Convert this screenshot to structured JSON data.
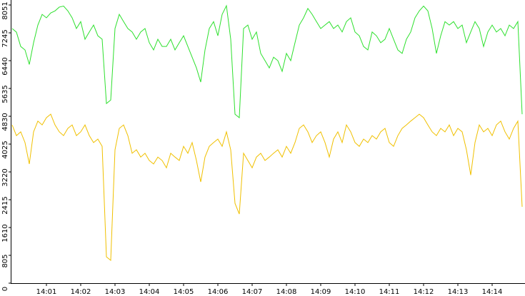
{
  "chart_data": {
    "type": "line",
    "categories": [
      null,
      null,
      null,
      null,
      null,
      null,
      null,
      null,
      "14:01",
      null,
      null,
      null,
      null,
      null,
      null,
      null,
      "14:02",
      null,
      null,
      null,
      null,
      null,
      null,
      null,
      "14:03",
      null,
      null,
      null,
      null,
      null,
      null,
      null,
      "14:04",
      null,
      null,
      null,
      null,
      null,
      null,
      null,
      "14:05",
      null,
      null,
      null,
      null,
      null,
      null,
      null,
      "14:06",
      null,
      null,
      null,
      null,
      null,
      null,
      null,
      "14:07",
      null,
      null,
      null,
      null,
      null,
      null,
      null,
      "14:08",
      null,
      null,
      null,
      null,
      null,
      null,
      null,
      "14:09",
      null,
      null,
      null,
      null,
      null,
      null,
      null,
      "14:10",
      null,
      null,
      null,
      null,
      null,
      null,
      null,
      "14:11",
      null,
      null,
      null,
      null,
      null,
      null,
      null,
      "14:12",
      null,
      null,
      null,
      null,
      null,
      null,
      null,
      "14:13",
      null,
      null,
      null,
      null,
      null,
      null,
      null,
      "14:14",
      null,
      null,
      null,
      null,
      null,
      null,
      null
    ],
    "series": [
      {
        "color": "#2ee02e",
        "values": [
          7370,
          7265,
          6850,
          6750,
          6330,
          6960,
          7470,
          7780,
          7680,
          7820,
          7880,
          7990,
          8020,
          7880,
          7680,
          7370,
          7570,
          7060,
          7270,
          7470,
          7160,
          7060,
          5200,
          5300,
          7370,
          7780,
          7570,
          7370,
          7270,
          7060,
          7270,
          7370,
          6960,
          6750,
          7060,
          6850,
          6850,
          7060,
          6750,
          6960,
          7160,
          6850,
          6540,
          6230,
          5820,
          6750,
          7370,
          7570,
          7160,
          7780,
          8030,
          7060,
          4890,
          4790,
          7370,
          7470,
          7060,
          7270,
          6650,
          6440,
          6230,
          6540,
          6440,
          6130,
          6650,
          6440,
          6960,
          7470,
          7680,
          7950,
          7780,
          7570,
          7370,
          7470,
          7570,
          7370,
          7470,
          7270,
          7570,
          7680,
          7270,
          7160,
          6850,
          6750,
          7270,
          7160,
          6960,
          7060,
          7370,
          7060,
          6750,
          6650,
          7060,
          7270,
          7680,
          7880,
          8020,
          7880,
          7370,
          6650,
          7160,
          7570,
          7470,
          7570,
          7370,
          7470,
          6960,
          7270,
          7570,
          7370,
          6850,
          7270,
          7470,
          7270,
          7370,
          7160,
          7470,
          7370,
          7570,
          4890
        ]
      },
      {
        "color": "#f0c000",
        "values": [
          4580,
          4270,
          4380,
          4070,
          3450,
          4380,
          4690,
          4580,
          4790,
          4890,
          4580,
          4380,
          4270,
          4480,
          4580,
          4270,
          4380,
          4580,
          4270,
          4070,
          4170,
          3960,
          760,
          660,
          3860,
          4480,
          4580,
          4270,
          3760,
          3860,
          3650,
          3760,
          3550,
          3450,
          3650,
          3550,
          3340,
          3760,
          3650,
          3550,
          3960,
          3760,
          4070,
          3550,
          2930,
          3650,
          3960,
          4070,
          4170,
          3960,
          4380,
          3860,
          2310,
          2000,
          3760,
          3550,
          3340,
          3650,
          3760,
          3550,
          3650,
          3760,
          3860,
          3650,
          3960,
          3760,
          4070,
          4480,
          4580,
          4380,
          4070,
          4270,
          4380,
          4070,
          3650,
          4170,
          4380,
          4070,
          4580,
          4380,
          4070,
          3960,
          4170,
          4070,
          4270,
          4170,
          4380,
          4480,
          4070,
          3960,
          4270,
          4480,
          4580,
          4690,
          4790,
          4890,
          4790,
          4580,
          4380,
          4270,
          4480,
          4380,
          4580,
          4270,
          4480,
          4380,
          3860,
          3130,
          4070,
          4580,
          4380,
          4480,
          4270,
          4580,
          4690,
          4380,
          4170,
          4480,
          4690,
          2210
        ]
      }
    ],
    "ylim": [
      0,
      8051
    ],
    "yticks": [
      0,
      805,
      1610,
      2415,
      3220,
      4025,
      4830,
      5635,
      6440,
      7245,
      8051
    ]
  }
}
